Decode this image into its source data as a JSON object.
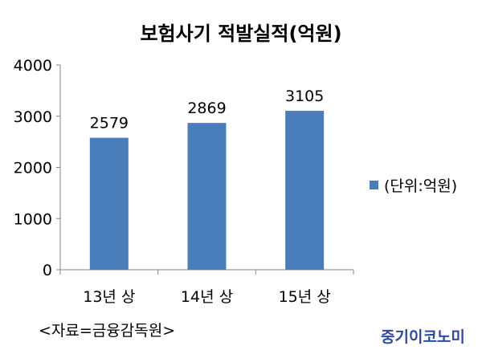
{
  "chart_data": {
    "type": "bar",
    "title": "보험사기 적발실적(억원)",
    "categories": [
      "13년 상",
      "14년 상",
      "15년 상"
    ],
    "series": [
      {
        "name": "(단위:억원)",
        "values": [
          2579,
          2869,
          3105
        ]
      }
    ],
    "ylim": [
      0,
      4000
    ],
    "yticks": [
      0,
      1000,
      2000,
      3000,
      4000
    ],
    "xlabel": "",
    "ylabel": "",
    "grid": false,
    "legend_position": "right",
    "bar_color": "#4a7ebb"
  },
  "source": "<자료=금융감독원>",
  "publisher": "중기이코노미"
}
